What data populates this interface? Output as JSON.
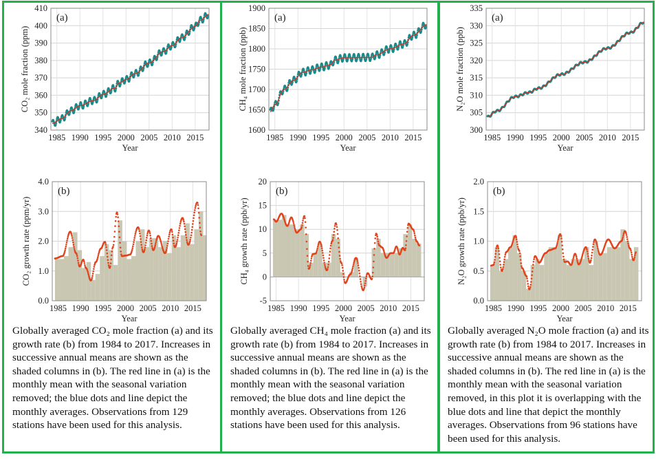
{
  "colors": {
    "border": "#21b24b",
    "trend_line": "#c0392b",
    "monthly_dots": "#1a8a8a",
    "growth_dots": "#e0441c",
    "bars": "#c9c7b2"
  },
  "captions": [
    "Globally averaged CO₂ mole fraction (a) and its growth rate (b) from 1984 to 2017. Increases in successive annual means are shown as the shaded columns in (b). The red line in (a) is the monthly mean with the seasonal variation removed; the blue dots and line depict the monthly averages. Observations from 129 stations have been used for this analysis.",
    "Globally averaged CH₄ mole fraction (a) and its growth rate (b) from 1984 to 2017. Increases in successive annual means are shown as the shaded columns in (b). The red line in (a) is the monthly mean with the seasonal variation removed; the blue dots and line depict the monthly averages. Observations from 126 stations have been used for this analysis.",
    "Globally averaged N₂O mole fraction (a) and its growth rate (b) from 1984 to 2017. Increases in successive annual means are shown as the shaded columns in (b). The red line in (a) is the monthly mean with the seasonal variation removed, in this plot it is overlapping with the blue dots and line that depict the monthly averages. Observations from 96 stations have been used for this analysis."
  ],
  "chart_data": [
    {
      "type": "line",
      "panel": "(a)",
      "xlabel": "Year",
      "ylabel": "CO₂ mole fraction (ppm)",
      "xlim": [
        1983.7,
        2018
      ],
      "ylim": [
        340,
        410
      ],
      "xticks": [
        "1985",
        "1990",
        "1995",
        "2000",
        "2005",
        "2010",
        "2015"
      ],
      "yticks": [
        "340",
        "350",
        "360",
        "370",
        "380",
        "390",
        "400",
        "410"
      ],
      "grid": true,
      "seasonal_amplitude": 2,
      "trend": [
        [
          1984,
          343.8
        ],
        [
          1986,
          346.5
        ],
        [
          1988,
          351
        ],
        [
          1990,
          354
        ],
        [
          1993,
          357
        ],
        [
          1995,
          360.5
        ],
        [
          1997.5,
          364
        ],
        [
          1998.5,
          367
        ],
        [
          2000,
          369
        ],
        [
          2002,
          372.5
        ],
        [
          2005,
          378.5
        ],
        [
          2008,
          385
        ],
        [
          2010,
          388.5
        ],
        [
          2012,
          393
        ],
        [
          2015,
          399.5
        ],
        [
          2016,
          403
        ],
        [
          2018,
          406.5
        ]
      ]
    },
    {
      "type": "line",
      "panel": "(a)",
      "xlabel": "Year",
      "ylabel": "CH₄ mole fraction (ppb)",
      "xlim": [
        1983.7,
        2018
      ],
      "ylim": [
        1600,
        1900
      ],
      "xticks": [
        "1985",
        "1990",
        "1995",
        "2000",
        "2005",
        "2010",
        "2015"
      ],
      "yticks": [
        "1600",
        "1650",
        "1700",
        "1750",
        "1800",
        "1850",
        "1900"
      ],
      "grid": true,
      "seasonal_amplitude": 9,
      "trend": [
        [
          1984,
          1645
        ],
        [
          1985,
          1662
        ],
        [
          1987,
          1700
        ],
        [
          1989,
          1722
        ],
        [
          1991,
          1742
        ],
        [
          1993,
          1748
        ],
        [
          1995,
          1755
        ],
        [
          1997,
          1760
        ],
        [
          1998,
          1772
        ],
        [
          2000,
          1778
        ],
        [
          2006,
          1779
        ],
        [
          2007,
          1785
        ],
        [
          2010,
          1800
        ],
        [
          2013,
          1812
        ],
        [
          2015,
          1833
        ],
        [
          2018,
          1860
        ]
      ]
    },
    {
      "type": "line",
      "panel": "(a)",
      "xlabel": "Year",
      "ylabel": "N₂O mole fraction (ppb)",
      "xlim": [
        1983.7,
        2018
      ],
      "ylim": [
        300,
        335
      ],
      "xticks": [
        "1985",
        "1990",
        "1995",
        "2000",
        "2005",
        "2010",
        "2015"
      ],
      "yticks": [
        "300",
        "305",
        "310",
        "315",
        "320",
        "325",
        "330",
        "335"
      ],
      "grid": true,
      "seasonal_amplitude": 0.3,
      "trend": [
        [
          1984,
          303.8
        ],
        [
          1986,
          305.5
        ],
        [
          1990,
          309.6
        ],
        [
          1993,
          310.8
        ],
        [
          1995,
          312
        ],
        [
          2000,
          316
        ],
        [
          2005,
          319.5
        ],
        [
          2010,
          323.5
        ],
        [
          2015,
          328
        ],
        [
          2018,
          331
        ]
      ]
    },
    {
      "type": "bar",
      "panel": "(b)",
      "xlabel": "Year",
      "ylabel": "CO₂ growth rate (ppm/yr)",
      "xlim": [
        1983.7,
        2018
      ],
      "ylim": [
        0,
        4
      ],
      "xticks": [
        "1985",
        "1990",
        "1995",
        "2000",
        "2005",
        "2010",
        "2015"
      ],
      "yticks": [
        "0.0",
        "1.0",
        "2.0",
        "3.0",
        "4.0"
      ],
      "grid": true,
      "bar_start_year": 1984,
      "bars": [
        1.4,
        1.4,
        1.5,
        1.8,
        2.3,
        1.7,
        1.1,
        1.3,
        0.7,
        0.9,
        1.5,
        1.9,
        1.7,
        1.2,
        2.7,
        2.0,
        1.4,
        1.5,
        2.0,
        2.4,
        1.8,
        2.1,
        2.1,
        1.8,
        2.0,
        1.6,
        2.2,
        1.8,
        2.2,
        2.6,
        1.9,
        2.4,
        3.0,
        2.2
      ],
      "growth_line": [
        [
          1984.3,
          1.42
        ],
        [
          1986,
          1.5
        ],
        [
          1987.7,
          2.32
        ],
        [
          1989,
          1.6
        ],
        [
          1989.8,
          1.15
        ],
        [
          1990.6,
          1.38
        ],
        [
          1991.2,
          1.1
        ],
        [
          1992.3,
          0.68
        ],
        [
          1993.4,
          1.3
        ],
        [
          1994.5,
          1.75
        ],
        [
          1995.4,
          1.98
        ],
        [
          1996.5,
          1.1
        ],
        [
          1997.2,
          1.8
        ],
        [
          1998.1,
          2.97
        ],
        [
          1999.2,
          1.5
        ],
        [
          2000.2,
          1.52
        ],
        [
          2001,
          1.55
        ],
        [
          2002.8,
          2.47
        ],
        [
          2004,
          1.63
        ],
        [
          2005.2,
          2.36
        ],
        [
          2006.2,
          1.7
        ],
        [
          2007.3,
          2.18
        ],
        [
          2008.8,
          1.6
        ],
        [
          2010.2,
          2.4
        ],
        [
          2011,
          1.8
        ],
        [
          2012.7,
          2.78
        ],
        [
          2014,
          1.88
        ],
        [
          2016,
          3.3
        ],
        [
          2016.9,
          2.2
        ]
      ]
    },
    {
      "type": "bar",
      "panel": "(b)",
      "xlabel": "Year",
      "ylabel": "CH₄ growth rate (ppb/yr)",
      "xlim": [
        1983.7,
        2018
      ],
      "ylim": [
        -5,
        20
      ],
      "xticks": [
        "1985",
        "1990",
        "1995",
        "2000",
        "2005",
        "2010",
        "2015"
      ],
      "yticks": [
        "-5",
        "0",
        "5",
        "10",
        "15",
        "20"
      ],
      "grid": true,
      "bar_start_year": 1984,
      "bars": [
        12,
        12,
        13,
        11,
        11,
        10,
        11,
        9,
        3,
        5,
        7,
        3,
        3,
        9,
        8,
        1,
        0,
        1,
        4,
        0,
        -2,
        0,
        6,
        8,
        5,
        5,
        5,
        5,
        6,
        9,
        11,
        8,
        7
      ],
      "growth_line": [
        [
          1984.5,
          12.1
        ],
        [
          1985,
          11.6
        ],
        [
          1986.2,
          13.3
        ],
        [
          1987.5,
          10.7
        ],
        [
          1988.4,
          12.5
        ],
        [
          1989.6,
          9.3
        ],
        [
          1990.5,
          10
        ],
        [
          1991.3,
          12.8
        ],
        [
          1992.3,
          1.7
        ],
        [
          1993.2,
          4.8
        ],
        [
          1993.8,
          4.9
        ],
        [
          1994.7,
          7.4
        ],
        [
          1996.3,
          1.4
        ],
        [
          1997.5,
          7.5
        ],
        [
          1998.3,
          11.3
        ],
        [
          1999.5,
          3
        ],
        [
          2000.4,
          -1.3
        ],
        [
          2001.5,
          0.5
        ],
        [
          2002.8,
          4
        ],
        [
          2004.4,
          -2.8
        ],
        [
          2005.4,
          0.8
        ],
        [
          2006.3,
          -0.5
        ],
        [
          2007.3,
          9.1
        ],
        [
          2008,
          6.6
        ],
        [
          2008.6,
          6.2
        ],
        [
          2009.6,
          4
        ],
        [
          2010.5,
          5
        ],
        [
          2011.1,
          5
        ],
        [
          2011.8,
          6.4
        ],
        [
          2012.5,
          4.7
        ],
        [
          2013.2,
          6.1
        ],
        [
          2013.7,
          5.6
        ],
        [
          2014.5,
          11.2
        ],
        [
          2015.5,
          10
        ],
        [
          2016.3,
          7.5
        ],
        [
          2016.9,
          6.6
        ]
      ]
    },
    {
      "type": "bar",
      "panel": "(b)",
      "xlabel": "Year",
      "ylabel": "N₂O growth rate (ppb/yr)",
      "xlim": [
        1983.7,
        2018
      ],
      "ylim": [
        0,
        2
      ],
      "xticks": [
        "1985",
        "1990",
        "1995",
        "2000",
        "2005",
        "2010",
        "2015"
      ],
      "yticks": [
        "0.0",
        "0.5",
        "1.0",
        "1.5",
        "2.0"
      ],
      "grid": true,
      "bar_start_year": 1984,
      "bars": [
        0.6,
        0.9,
        0.5,
        0.7,
        0.9,
        1.1,
        0.8,
        0.5,
        0.2,
        0.6,
        0.7,
        0.6,
        0.8,
        0.9,
        0.9,
        1.1,
        0.7,
        0.6,
        0.7,
        0.7,
        0.7,
        0.9,
        0.6,
        1.0,
        0.8,
        0.8,
        0.9,
        0.9,
        0.9,
        1.2,
        1.0,
        0.7,
        0.9
      ],
      "growth_line": [
        [
          1984.5,
          0.59
        ],
        [
          1985,
          0.6
        ],
        [
          1985.9,
          0.93
        ],
        [
          1986.9,
          0.5
        ],
        [
          1987.9,
          0.82
        ],
        [
          1988.8,
          0.9
        ],
        [
          1989.9,
          1.09
        ],
        [
          1990.7,
          0.85
        ],
        [
          1991.4,
          0.55
        ],
        [
          1992.3,
          0.42
        ],
        [
          1993,
          0.19
        ],
        [
          1994.3,
          0.75
        ],
        [
          1995.2,
          0.64
        ],
        [
          1996.6,
          0.8
        ],
        [
          1997.5,
          0.85
        ],
        [
          1998.8,
          0.88
        ],
        [
          1999.9,
          1.12
        ],
        [
          2000.9,
          0.65
        ],
        [
          2001.5,
          0.66
        ],
        [
          2002.3,
          0.6
        ],
        [
          2003.2,
          0.79
        ],
        [
          2004,
          0.61
        ],
        [
          2005.6,
          0.9
        ],
        [
          2006.5,
          0.64
        ],
        [
          2007.6,
          1.03
        ],
        [
          2008.8,
          0.77
        ],
        [
          2010.6,
          1.03
        ],
        [
          2012,
          0.88
        ],
        [
          2013.5,
          1.0
        ],
        [
          2014.3,
          1.17
        ],
        [
          2015.4,
          0.88
        ],
        [
          2016.2,
          0.68
        ],
        [
          2016.8,
          0.82
        ]
      ]
    }
  ]
}
